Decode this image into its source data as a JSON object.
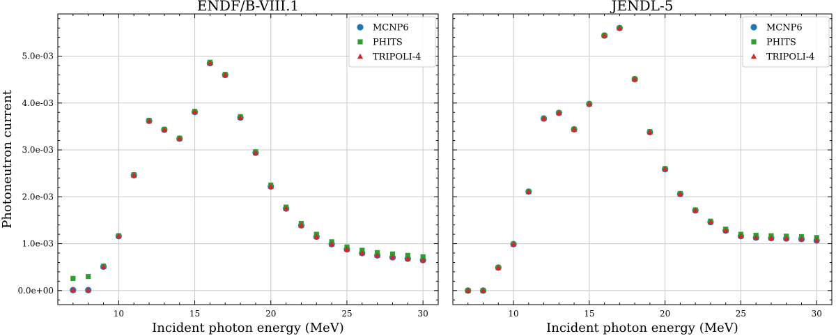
{
  "chart_data": [
    {
      "type": "scatter",
      "title": "ENDF/B-VIII.1",
      "xlabel": "Incident photon energy (MeV)",
      "ylabel": "Photoneutron current",
      "xlim": [
        6,
        31
      ],
      "ylim": [
        -0.0003,
        0.0059
      ],
      "xticks": [
        10,
        15,
        20,
        25,
        30
      ],
      "xtick_labels": [
        "10",
        "15",
        "20",
        "25",
        "30"
      ],
      "yticks": [
        0,
        0.001,
        0.002,
        0.003,
        0.004,
        0.005
      ],
      "ytick_labels": [
        "0.0e+00",
        "1.0e-03",
        "2.0e-03",
        "3.0e-03",
        "4.0e-03",
        "5.0e-03"
      ],
      "grid": true,
      "legend": "top-right",
      "x": [
        7,
        8,
        9,
        10,
        11,
        12,
        13,
        14,
        15,
        16,
        17,
        18,
        19,
        20,
        21,
        22,
        23,
        24,
        25,
        26,
        27,
        28,
        29,
        30
      ],
      "series": [
        {
          "name": "MCNP6",
          "marker": "circle",
          "color": "#1f77b4",
          "values": [
            1e-05,
            1e-05,
            0.00051,
            0.00116,
            0.00246,
            0.00362,
            0.00343,
            0.00324,
            0.00381,
            0.00485,
            0.0046,
            0.00369,
            0.00294,
            0.00222,
            0.00175,
            0.00139,
            0.00115,
            0.00099,
            0.00088,
            0.0008,
            0.00075,
            0.00071,
            0.00068,
            0.00065
          ]
        },
        {
          "name": "PHITS",
          "marker": "square",
          "color": "#2ca02c",
          "values": [
            0.00026,
            0.0003,
            0.00052,
            0.00117,
            0.00247,
            0.00363,
            0.00344,
            0.00325,
            0.00382,
            0.00487,
            0.00461,
            0.00371,
            0.00296,
            0.00225,
            0.00178,
            0.00143,
            0.0012,
            0.00104,
            0.00093,
            0.00086,
            0.00081,
            0.00078,
            0.00075,
            0.00072
          ]
        },
        {
          "name": "TRIPOLI-4",
          "marker": "triangle",
          "color": "#d62728",
          "values": [
            1e-05,
            1e-05,
            0.00051,
            0.00116,
            0.00246,
            0.00362,
            0.00343,
            0.00324,
            0.00381,
            0.00485,
            0.0046,
            0.00369,
            0.00294,
            0.00222,
            0.00175,
            0.00139,
            0.00115,
            0.00099,
            0.00088,
            0.0008,
            0.00075,
            0.00071,
            0.00068,
            0.00065
          ]
        }
      ]
    },
    {
      "type": "scatter",
      "title": "JENDL-5",
      "xlabel": "Incident photon energy (MeV)",
      "ylabel": "",
      "xlim": [
        6,
        31
      ],
      "ylim": [
        -0.0003,
        0.0059
      ],
      "xticks": [
        10,
        15,
        20,
        25,
        30
      ],
      "xtick_labels": [
        "10",
        "15",
        "20",
        "25",
        "30"
      ],
      "yticks": [
        0,
        0.001,
        0.002,
        0.003,
        0.004,
        0.005
      ],
      "ytick_labels": [],
      "grid": true,
      "legend": "top-right",
      "x": [
        7,
        8,
        9,
        10,
        11,
        12,
        13,
        14,
        15,
        16,
        17,
        18,
        19,
        20,
        21,
        22,
        23,
        24,
        25,
        26,
        27,
        28,
        29,
        30
      ],
      "series": [
        {
          "name": "MCNP6",
          "marker": "circle",
          "color": "#1f77b4",
          "values": [
            0.0,
            0.0,
            0.00049,
            0.00099,
            0.00211,
            0.00367,
            0.00379,
            0.00344,
            0.00398,
            0.00544,
            0.0056,
            0.00451,
            0.00338,
            0.00259,
            0.00206,
            0.00171,
            0.00146,
            0.00128,
            0.00116,
            0.00113,
            0.00112,
            0.00111,
            0.0011,
            0.00107
          ]
        },
        {
          "name": "PHITS",
          "marker": "square",
          "color": "#2ca02c",
          "values": [
            0.0,
            0.0,
            0.00049,
            0.00099,
            0.00211,
            0.00367,
            0.00379,
            0.00344,
            0.00398,
            0.00544,
            0.0056,
            0.00451,
            0.00339,
            0.0026,
            0.00207,
            0.00172,
            0.00148,
            0.00131,
            0.0012,
            0.00118,
            0.00117,
            0.00116,
            0.00115,
            0.00113
          ]
        },
        {
          "name": "TRIPOLI-4",
          "marker": "triangle",
          "color": "#d62728",
          "values": [
            0.0,
            0.0,
            0.00049,
            0.00099,
            0.00211,
            0.00367,
            0.00379,
            0.00344,
            0.00398,
            0.00544,
            0.0056,
            0.00451,
            0.00338,
            0.00259,
            0.00206,
            0.00171,
            0.00146,
            0.00128,
            0.00116,
            0.00113,
            0.00112,
            0.00111,
            0.0011,
            0.00107
          ]
        }
      ]
    }
  ]
}
